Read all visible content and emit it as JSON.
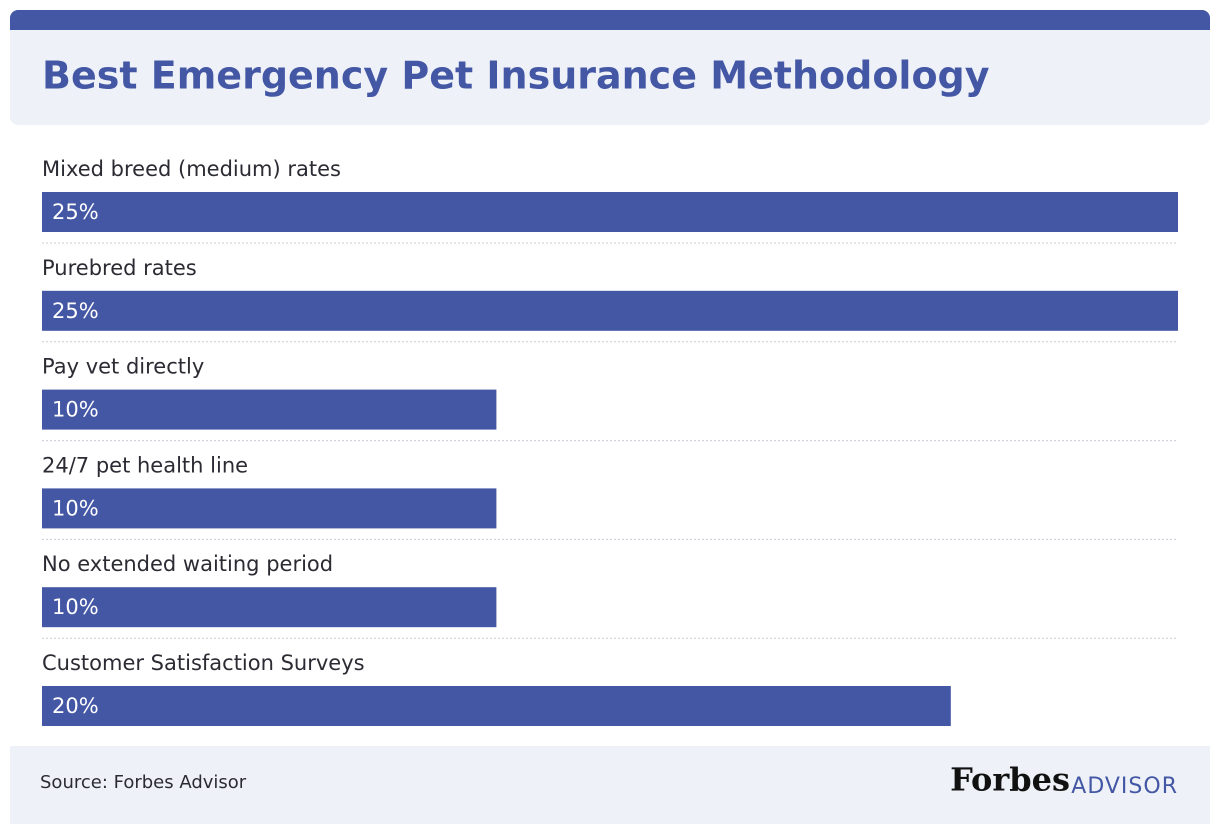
{
  "chart_data": {
    "type": "bar",
    "orientation": "horizontal",
    "title": "Best Emergency Pet Insurance Methodology",
    "categories": [
      "Mixed breed (medium) rates",
      "Purebred rates",
      "Pay vet directly",
      "24/7 pet health line",
      "No extended waiting period",
      "Customer Satisfaction Surveys"
    ],
    "values": [
      25,
      25,
      10,
      10,
      10,
      20
    ],
    "value_labels": [
      "25%",
      "25%",
      "10%",
      "10%",
      "10%",
      "20%"
    ],
    "color": "#4457a5",
    "source": "Source: Forbes Advisor",
    "logo": {
      "name": "Forbes",
      "sub": "ADVISOR"
    }
  }
}
